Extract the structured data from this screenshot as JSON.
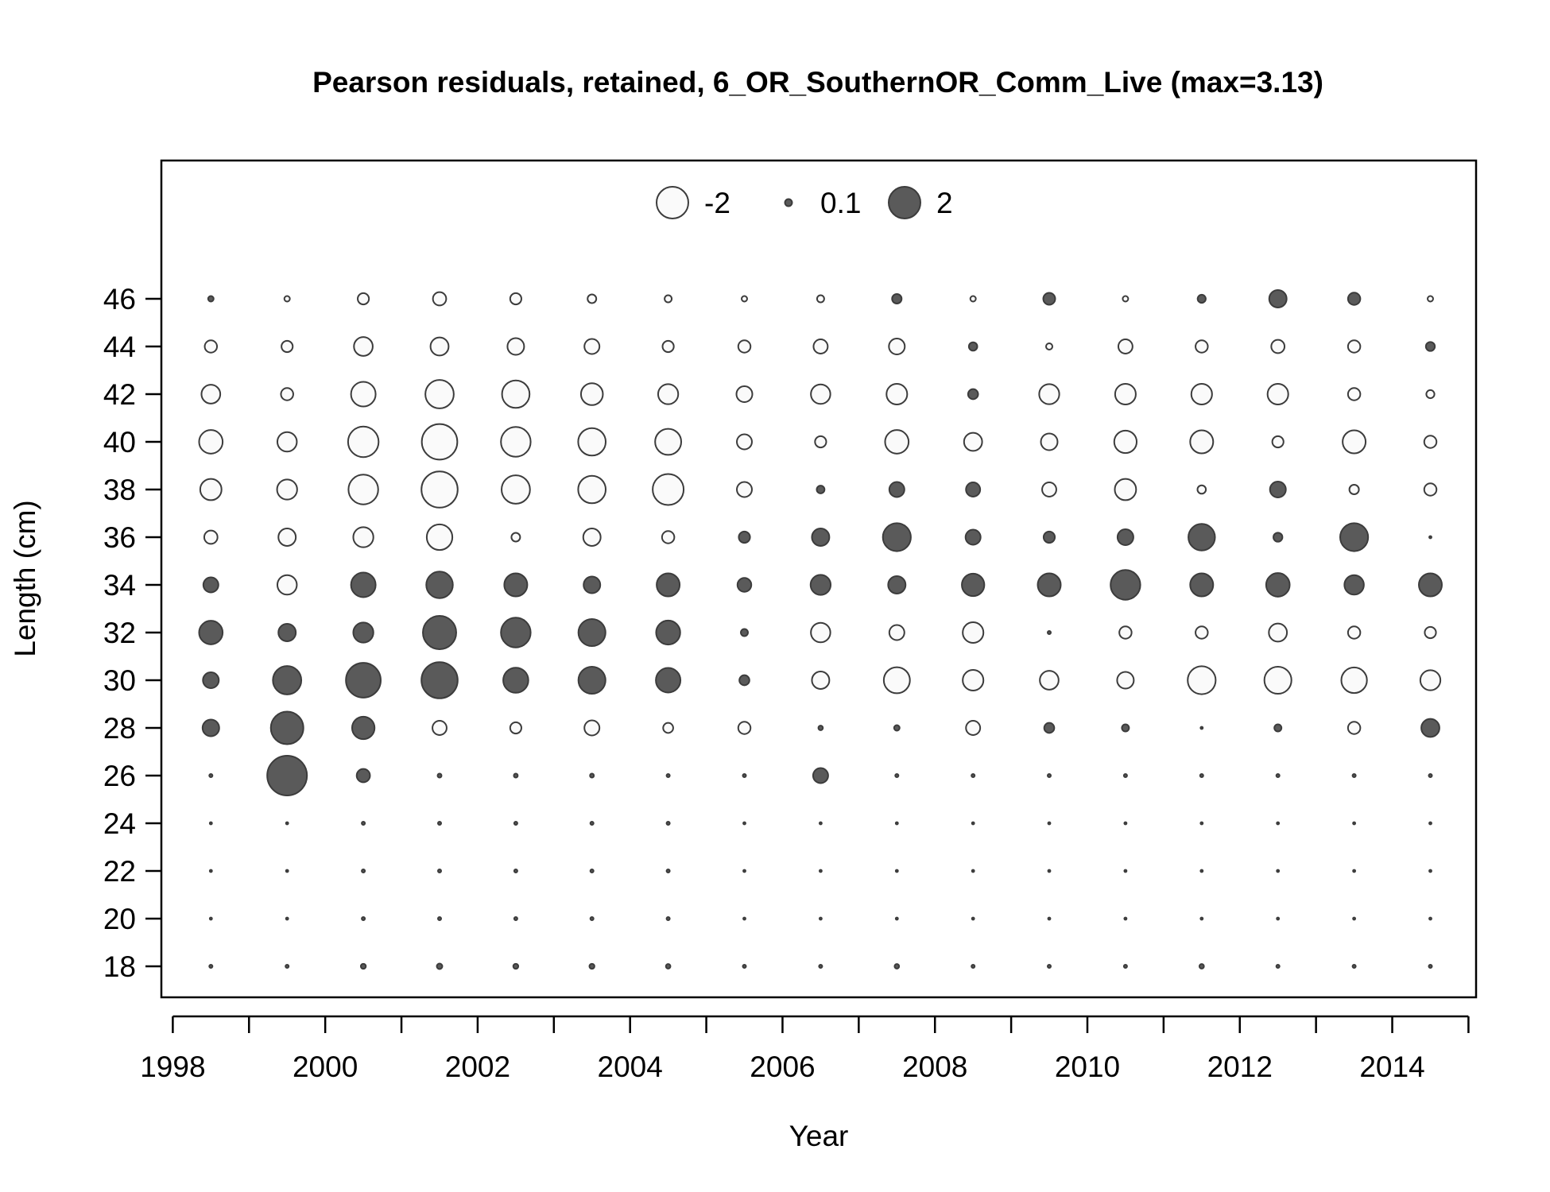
{
  "chart_data": {
    "type": "scatter",
    "title": "Pearson residuals, retained, 6_OR_SouthernOR_Comm_Live (max=3.13)",
    "xlabel": "Year",
    "ylabel": "Length (cm)",
    "xlim": [
      1997.85,
      2015.1
    ],
    "ylim": [
      16.7,
      51.8
    ],
    "x_ticks": [
      1998,
      1999,
      2000,
      2001,
      2002,
      2003,
      2004,
      2005,
      2006,
      2007,
      2008,
      2009,
      2010,
      2011,
      2012,
      2013,
      2014,
      2015
    ],
    "x_tick_labels": [
      "1998",
      "2000",
      "2002",
      "2004",
      "2006",
      "2008",
      "2010",
      "2012",
      "2014"
    ],
    "x_tick_label_values": [
      1998,
      2000,
      2002,
      2004,
      2006,
      2008,
      2010,
      2012,
      2014
    ],
    "y_ticks": [
      18,
      20,
      22,
      24,
      26,
      28,
      30,
      32,
      34,
      36,
      38,
      40,
      42,
      44,
      46
    ],
    "y_tick_labels": [
      "18",
      "20",
      "22",
      "24",
      "26",
      "28",
      "30",
      "32",
      "34",
      "36",
      "38",
      "40",
      "42",
      "44",
      "46"
    ],
    "grid": false,
    "legend": {
      "placement": "top-center",
      "entries": [
        {
          "label": "-2",
          "value": -2
        },
        {
          "label": "0.1",
          "value": 0.1
        },
        {
          "label": "2",
          "value": 2
        }
      ]
    },
    "encoding": {
      "size": "sqrt(|residual|)",
      "positive_fill": "#5a5a5a",
      "negative_fill": "#fafafa",
      "stroke": "#3c3c3c"
    },
    "max_residual": 3.13,
    "lengths": [
      18,
      20,
      22,
      24,
      26,
      28,
      30,
      32,
      34,
      36,
      38,
      40,
      42,
      44,
      46
    ],
    "series": [
      {
        "year": 1998.5,
        "residuals": [
          0.02,
          0.01,
          0.01,
          0.01,
          0.02,
          0.55,
          0.5,
          1.1,
          0.45,
          -0.35,
          -0.9,
          -1.1,
          -0.7,
          -0.3,
          0.06
        ]
      },
      {
        "year": 1999.5,
        "residuals": [
          0.02,
          0.01,
          0.01,
          0.01,
          3.13,
          2.1,
          1.6,
          0.6,
          -0.75,
          -0.6,
          -0.8,
          -0.75,
          -0.3,
          -0.25,
          -0.06
        ]
      },
      {
        "year": 2000.5,
        "residuals": [
          0.05,
          0.02,
          0.02,
          0.02,
          0.35,
          1.0,
          2.4,
          0.8,
          1.2,
          -0.8,
          -1.75,
          -1.85,
          -1.2,
          -0.7,
          -0.25
        ]
      },
      {
        "year": 2001.5,
        "residuals": [
          0.06,
          0.02,
          0.02,
          0.02,
          0.03,
          -0.4,
          2.6,
          2.2,
          1.4,
          -1.3,
          -2.6,
          -2.5,
          -1.6,
          -0.65,
          -0.35
        ]
      },
      {
        "year": 2002.5,
        "residuals": [
          0.05,
          0.02,
          0.02,
          0.02,
          0.03,
          -0.25,
          1.25,
          1.75,
          1.05,
          -0.15,
          -1.6,
          -1.75,
          -1.5,
          -0.55,
          -0.25
        ]
      },
      {
        "year": 2003.5,
        "residuals": [
          0.05,
          0.02,
          0.02,
          0.02,
          0.03,
          -0.45,
          1.45,
          1.45,
          0.55,
          -0.6,
          -1.5,
          -1.5,
          -0.95,
          -0.45,
          -0.15
        ]
      },
      {
        "year": 2004.5,
        "residuals": [
          0.04,
          0.02,
          0.02,
          0.02,
          0.02,
          -0.2,
          1.2,
          1.15,
          1.05,
          -0.3,
          -1.9,
          -1.35,
          -0.8,
          -0.25,
          -0.1
        ]
      },
      {
        "year": 2005.5,
        "residuals": [
          0.02,
          0.01,
          0.01,
          0.01,
          0.02,
          -0.3,
          0.2,
          0.1,
          0.38,
          0.25,
          -0.45,
          -0.45,
          -0.5,
          -0.3,
          -0.06
        ]
      },
      {
        "year": 2006.5,
        "residuals": [
          0.02,
          0.01,
          0.01,
          0.01,
          0.45,
          0.04,
          -0.6,
          -0.75,
          0.8,
          0.6,
          0.12,
          -0.25,
          -0.75,
          -0.4,
          -0.1
        ]
      },
      {
        "year": 2007.5,
        "residuals": [
          0.04,
          0.01,
          0.01,
          0.01,
          0.02,
          0.06,
          -1.35,
          -0.45,
          0.6,
          1.55,
          0.45,
          -1.1,
          -0.85,
          -0.5,
          0.18
        ]
      },
      {
        "year": 2008.5,
        "residuals": [
          0.02,
          0.01,
          0.01,
          0.01,
          0.02,
          -0.4,
          -0.85,
          -0.85,
          1.0,
          0.45,
          0.4,
          -0.65,
          0.2,
          0.14,
          -0.06
        ]
      },
      {
        "year": 2009.5,
        "residuals": [
          0.02,
          0.01,
          0.01,
          0.01,
          0.02,
          0.2,
          -0.7,
          0.02,
          1.05,
          0.25,
          -0.4,
          -0.55,
          -0.8,
          -0.08,
          0.28
        ]
      },
      {
        "year": 2010.5,
        "residuals": [
          0.02,
          0.01,
          0.01,
          0.01,
          0.02,
          0.1,
          -0.55,
          -0.3,
          1.75,
          0.5,
          -0.9,
          -1.0,
          -0.85,
          -0.4,
          -0.06
        ]
      },
      {
        "year": 2011.5,
        "residuals": [
          0.04,
          0.01,
          0.01,
          0.01,
          0.02,
          0.01,
          -1.55,
          -0.3,
          1.05,
          1.4,
          -0.14,
          -1.05,
          -0.85,
          -0.3,
          0.13
        ]
      },
      {
        "year": 2012.5,
        "residuals": [
          0.02,
          0.01,
          0.01,
          0.01,
          0.02,
          0.1,
          -1.45,
          -0.65,
          1.1,
          0.16,
          0.5,
          -0.25,
          -0.85,
          -0.35,
          0.6
        ]
      },
      {
        "year": 2013.5,
        "residuals": [
          0.02,
          0.01,
          0.01,
          0.01,
          0.02,
          -0.3,
          -1.3,
          -0.3,
          0.75,
          1.55,
          -0.18,
          -1.05,
          -0.3,
          -0.3,
          0.3
        ]
      },
      {
        "year": 2014.5,
        "residuals": [
          0.02,
          0.01,
          0.01,
          0.01,
          0.02,
          0.65,
          -0.8,
          -0.25,
          1.05,
          0.01,
          -0.3,
          -0.3,
          -0.13,
          0.16,
          -0.06
        ]
      }
    ]
  }
}
